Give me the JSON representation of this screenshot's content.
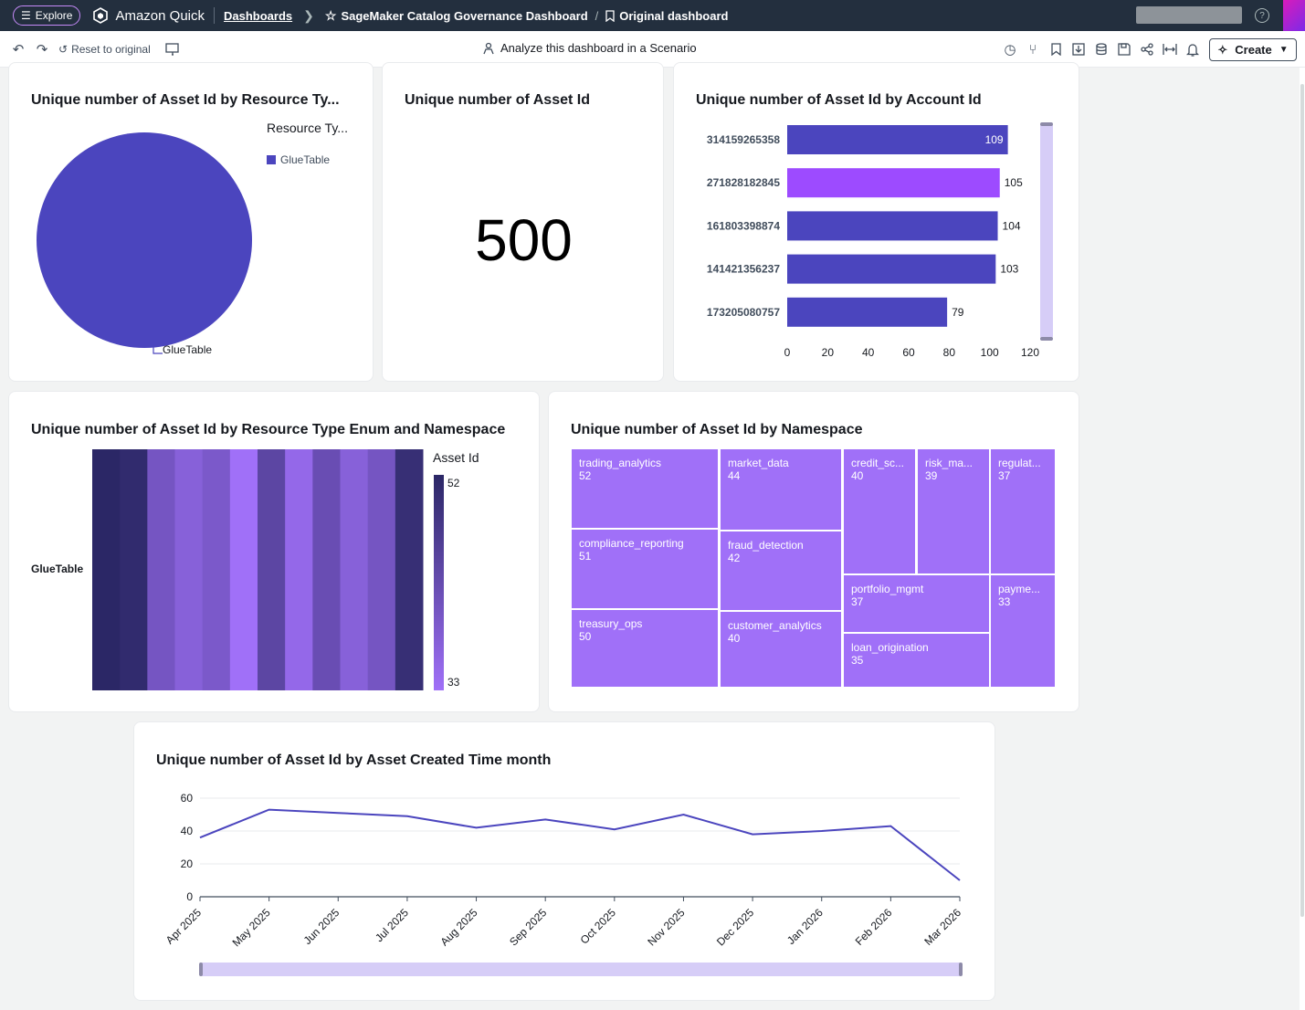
{
  "topbar": {
    "explore_label": "Explore",
    "brand": "Amazon Quick",
    "dashboards_link": "Dashboards",
    "dashboard_name": "SageMaker Catalog Governance Dashboard",
    "view_name": "Original dashboard"
  },
  "toolbar": {
    "reset_label": "Reset to original",
    "analyze_label": "Analyze this dashboard in a Scenario",
    "create_label": "Create"
  },
  "colors": {
    "accent": "#4b45be",
    "highlight": "#9d4bff",
    "treemap": "#a070f8"
  },
  "visuals": {
    "pie": {
      "title": "Unique number of Asset Id by Resource Ty...",
      "legend_title": "Resource Ty...",
      "legend_item": "GlueTable",
      "slice_label": "GlueTable",
      "chart_data": {
        "type": "pie",
        "categories": [
          "GlueTable"
        ],
        "values": [
          500
        ]
      }
    },
    "kpi": {
      "title": "Unique number of Asset Id",
      "value": "500"
    },
    "account_bar": {
      "title": "Unique number of Asset Id by Account Id",
      "chart_data": {
        "type": "bar",
        "orientation": "horizontal",
        "categories": [
          "314159265358",
          "271828182845",
          "161803398874",
          "141421356237",
          "173205080757"
        ],
        "values": [
          109,
          105,
          104,
          103,
          79
        ],
        "xlim": [
          0,
          120
        ],
        "xticks": [
          "0",
          "20",
          "40",
          "60",
          "80",
          "100",
          "120"
        ]
      }
    },
    "heatmap": {
      "title": "Unique number of Asset Id by Resource Type Enum and Namespace",
      "row_label": "GlueTable",
      "legend_title": "Asset Id",
      "legend_max": "52",
      "legend_min": "33",
      "chart_data": {
        "type": "heatmap",
        "rows": [
          "GlueTable"
        ],
        "values": [
          52,
          51,
          40,
          37,
          39,
          33,
          44,
          35,
          42,
          37,
          40,
          50
        ],
        "range": [
          33,
          52
        ]
      }
    },
    "treemap": {
      "title": "Unique number of Asset Id by Namespace",
      "chart_data": {
        "type": "treemap",
        "items": [
          {
            "label": "trading_analytics",
            "value": "52"
          },
          {
            "label": "compliance_reporting",
            "value": "51"
          },
          {
            "label": "treasury_ops",
            "value": "50"
          },
          {
            "label": "market_data",
            "value": "44"
          },
          {
            "label": "fraud_detection",
            "value": "42"
          },
          {
            "label": "customer_analytics",
            "value": "40"
          },
          {
            "label": "credit_sc...",
            "value": "40"
          },
          {
            "label": "risk_ma...",
            "value": "39"
          },
          {
            "label": "regulat...",
            "value": "37"
          },
          {
            "label": "portfolio_mgmt",
            "value": "37"
          },
          {
            "label": "loan_origination",
            "value": "35"
          },
          {
            "label": "payme...",
            "value": "33"
          }
        ]
      }
    },
    "line": {
      "title": "Unique number of Asset Id by Asset Created Time month",
      "chart_data": {
        "type": "line",
        "x": [
          "Apr 2025",
          "May 2025",
          "Jun 2025",
          "Jul 2025",
          "Aug 2025",
          "Sep 2025",
          "Oct 2025",
          "Nov 2025",
          "Dec 2025",
          "Jan 2026",
          "Feb 2026",
          "Mar 2026"
        ],
        "values": [
          36,
          53,
          51,
          49,
          42,
          47,
          41,
          50,
          38,
          40,
          43,
          10
        ],
        "ylim": [
          0,
          60
        ],
        "yticks": [
          "0",
          "20",
          "40",
          "60"
        ],
        "grid": true
      }
    }
  }
}
